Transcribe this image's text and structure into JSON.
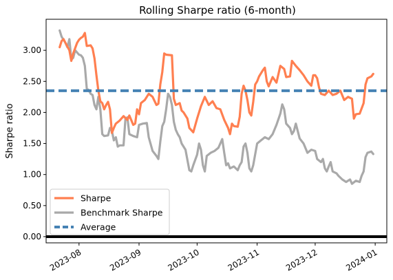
{
  "chart_data": {
    "type": "line",
    "title": "Rolling Sharpe ratio (6-month)",
    "xlabel": "",
    "ylabel": "Sharpe ratio",
    "ylim": [
      -0.1,
      3.5
    ],
    "y_ticks": [
      0.0,
      0.5,
      1.0,
      1.5,
      2.0,
      2.5,
      3.0
    ],
    "y_tick_labels": [
      "0.00",
      "0.50",
      "1.00",
      "1.50",
      "2.00",
      "2.50",
      "3.00"
    ],
    "xlim": [
      "2023-07-15",
      "2024-01-07"
    ],
    "x_ticks": [
      "2023-08-01",
      "2023-09-01",
      "2023-10-01",
      "2023-11-01",
      "2023-12-01",
      "2024-01-01"
    ],
    "x_tick_labels": [
      "2023-08",
      "2023-09",
      "2023-10",
      "2023-11",
      "2023-12",
      "2024-01"
    ],
    "grid": false,
    "legend_position": "lower-left",
    "colors": {
      "sharpe": "#ff7f50",
      "benchmark": "#a9a9a9",
      "average": "#4682b4",
      "zero_line": "#000000"
    },
    "series": [
      {
        "name": "Sharpe",
        "style": "solid",
        "points": [
          [
            "2023-07-22",
            3.05
          ],
          [
            "2023-07-23",
            3.15
          ],
          [
            "2023-07-24",
            3.18
          ],
          [
            "2023-07-25",
            3.12
          ],
          [
            "2023-07-27",
            3.0
          ],
          [
            "2023-07-28",
            2.83
          ],
          [
            "2023-07-29",
            2.95
          ],
          [
            "2023-07-31",
            3.12
          ],
          [
            "2023-08-01",
            3.17
          ],
          [
            "2023-08-02",
            3.2
          ],
          [
            "2023-08-03",
            3.22
          ],
          [
            "2023-08-04",
            3.28
          ],
          [
            "2023-08-05",
            3.07
          ],
          [
            "2023-08-07",
            3.08
          ],
          [
            "2023-08-08",
            3.03
          ],
          [
            "2023-08-09",
            2.87
          ],
          [
            "2023-08-10",
            2.6
          ],
          [
            "2023-08-11",
            2.35
          ],
          [
            "2023-08-12",
            2.18
          ],
          [
            "2023-08-13",
            2.15
          ],
          [
            "2023-08-14",
            2.05
          ],
          [
            "2023-08-15",
            2.12
          ],
          [
            "2023-08-16",
            2.17
          ],
          [
            "2023-08-17",
            2.05
          ],
          [
            "2023-08-18",
            1.67
          ],
          [
            "2023-08-19",
            1.75
          ],
          [
            "2023-08-20",
            1.82
          ],
          [
            "2023-08-22",
            1.87
          ],
          [
            "2023-08-24",
            1.94
          ],
          [
            "2023-08-26",
            1.88
          ],
          [
            "2023-08-27",
            1.95
          ],
          [
            "2023-08-29",
            1.8
          ],
          [
            "2023-08-30",
            1.82
          ],
          [
            "2023-08-31",
            2.05
          ],
          [
            "2023-09-01",
            1.97
          ],
          [
            "2023-09-02",
            2.15
          ],
          [
            "2023-09-04",
            2.2
          ],
          [
            "2023-09-06",
            2.3
          ],
          [
            "2023-09-08",
            2.25
          ],
          [
            "2023-09-10",
            2.12
          ],
          [
            "2023-09-11",
            2.14
          ],
          [
            "2023-09-12",
            2.45
          ],
          [
            "2023-09-13",
            2.65
          ],
          [
            "2023-09-14",
            2.95
          ],
          [
            "2023-09-15",
            2.93
          ],
          [
            "2023-09-18",
            2.92
          ],
          [
            "2023-09-19",
            2.22
          ],
          [
            "2023-09-20",
            2.12
          ],
          [
            "2023-09-22",
            2.15
          ],
          [
            "2023-09-23",
            2.03
          ],
          [
            "2023-09-24",
            2.0
          ],
          [
            "2023-09-26",
            1.9
          ],
          [
            "2023-09-27",
            1.75
          ],
          [
            "2023-09-29",
            1.68
          ],
          [
            "2023-10-01",
            1.9
          ],
          [
            "2023-10-03",
            2.1
          ],
          [
            "2023-10-05",
            2.25
          ],
          [
            "2023-10-07",
            2.12
          ],
          [
            "2023-10-09",
            2.18
          ],
          [
            "2023-10-11",
            2.07
          ],
          [
            "2023-10-13",
            2.05
          ],
          [
            "2023-10-15",
            1.88
          ],
          [
            "2023-10-17",
            1.75
          ],
          [
            "2023-10-18",
            1.65
          ],
          [
            "2023-10-19",
            1.82
          ],
          [
            "2023-10-20",
            1.78
          ],
          [
            "2023-10-22",
            1.77
          ],
          [
            "2023-10-23",
            1.93
          ],
          [
            "2023-10-24",
            2.3
          ],
          [
            "2023-10-25",
            2.43
          ],
          [
            "2023-10-26",
            2.35
          ],
          [
            "2023-10-27",
            2.2
          ],
          [
            "2023-10-28",
            2.0
          ],
          [
            "2023-10-29",
            1.95
          ],
          [
            "2023-10-30",
            2.17
          ],
          [
            "2023-10-31",
            2.45
          ],
          [
            "2023-11-01",
            2.5
          ],
          [
            "2023-11-02",
            2.58
          ],
          [
            "2023-11-04",
            2.68
          ],
          [
            "2023-11-05",
            2.72
          ],
          [
            "2023-11-06",
            2.5
          ],
          [
            "2023-11-07",
            2.42
          ],
          [
            "2023-11-09",
            2.57
          ],
          [
            "2023-11-11",
            2.48
          ],
          [
            "2023-11-13",
            2.75
          ],
          [
            "2023-11-15",
            2.7
          ],
          [
            "2023-11-16",
            2.57
          ],
          [
            "2023-11-18",
            2.58
          ],
          [
            "2023-11-19",
            2.83
          ],
          [
            "2023-11-21",
            2.75
          ],
          [
            "2023-11-23",
            2.68
          ],
          [
            "2023-11-25",
            2.6
          ],
          [
            "2023-11-27",
            2.5
          ],
          [
            "2023-11-29",
            2.43
          ],
          [
            "2023-11-30",
            2.6
          ],
          [
            "2023-12-01",
            2.6
          ],
          [
            "2023-12-02",
            2.55
          ],
          [
            "2023-12-03",
            2.4
          ],
          [
            "2023-12-04",
            2.3
          ],
          [
            "2023-12-06",
            2.28
          ],
          [
            "2023-12-08",
            2.35
          ],
          [
            "2023-12-10",
            2.28
          ],
          [
            "2023-12-12",
            2.3
          ],
          [
            "2023-12-14",
            2.35
          ],
          [
            "2023-12-16",
            2.2
          ],
          [
            "2023-12-18",
            2.25
          ],
          [
            "2023-12-20",
            2.22
          ],
          [
            "2023-12-21",
            1.9
          ],
          [
            "2023-12-22",
            1.97
          ],
          [
            "2023-12-24",
            1.98
          ],
          [
            "2023-12-26",
            2.15
          ],
          [
            "2023-12-27",
            2.45
          ],
          [
            "2023-12-28",
            2.55
          ],
          [
            "2023-12-30",
            2.58
          ],
          [
            "2023-12-31",
            2.62
          ]
        ]
      },
      {
        "name": "Benchmark Sharpe",
        "style": "solid",
        "points": [
          [
            "2023-07-22",
            3.32
          ],
          [
            "2023-07-23",
            3.22
          ],
          [
            "2023-07-24",
            3.17
          ],
          [
            "2023-07-25",
            3.12
          ],
          [
            "2023-07-26",
            3.05
          ],
          [
            "2023-07-27",
            3.18
          ],
          [
            "2023-07-28",
            2.85
          ],
          [
            "2023-07-29",
            2.88
          ],
          [
            "2023-07-30",
            3.0
          ],
          [
            "2023-08-01",
            2.93
          ],
          [
            "2023-08-02",
            2.92
          ],
          [
            "2023-08-03",
            2.88
          ],
          [
            "2023-08-04",
            2.75
          ],
          [
            "2023-08-05",
            2.38
          ],
          [
            "2023-08-06",
            2.36
          ],
          [
            "2023-08-07",
            2.3
          ],
          [
            "2023-08-08",
            2.28
          ],
          [
            "2023-08-09",
            2.12
          ],
          [
            "2023-08-10",
            2.05
          ],
          [
            "2023-08-11",
            2.25
          ],
          [
            "2023-08-12",
            2.05
          ],
          [
            "2023-08-13",
            1.65
          ],
          [
            "2023-08-14",
            1.62
          ],
          [
            "2023-08-16",
            1.63
          ],
          [
            "2023-08-17",
            1.75
          ],
          [
            "2023-08-18",
            1.7
          ],
          [
            "2023-08-19",
            1.55
          ],
          [
            "2023-08-20",
            1.6
          ],
          [
            "2023-08-21",
            1.45
          ],
          [
            "2023-08-22",
            1.47
          ],
          [
            "2023-08-24",
            1.47
          ],
          [
            "2023-08-25",
            1.9
          ],
          [
            "2023-08-26",
            1.92
          ],
          [
            "2023-08-27",
            1.65
          ],
          [
            "2023-08-29",
            1.62
          ],
          [
            "2023-08-31",
            1.6
          ],
          [
            "2023-09-01",
            1.8
          ],
          [
            "2023-09-03",
            1.82
          ],
          [
            "2023-09-05",
            1.83
          ],
          [
            "2023-09-06",
            1.6
          ],
          [
            "2023-09-08",
            1.38
          ],
          [
            "2023-09-10",
            1.3
          ],
          [
            "2023-09-11",
            1.25
          ],
          [
            "2023-09-12",
            1.53
          ],
          [
            "2023-09-13",
            1.78
          ],
          [
            "2023-09-14",
            1.85
          ],
          [
            "2023-09-15",
            2.05
          ],
          [
            "2023-09-16",
            2.3
          ],
          [
            "2023-09-17",
            2.25
          ],
          [
            "2023-09-18",
            2.12
          ],
          [
            "2023-09-19",
            1.85
          ],
          [
            "2023-09-20",
            1.72
          ],
          [
            "2023-09-21",
            1.65
          ],
          [
            "2023-09-22",
            1.6
          ],
          [
            "2023-09-23",
            1.5
          ],
          [
            "2023-09-24",
            1.45
          ],
          [
            "2023-09-25",
            1.4
          ],
          [
            "2023-09-27",
            1.07
          ],
          [
            "2023-09-28",
            1.05
          ],
          [
            "2023-09-29",
            1.15
          ],
          [
            "2023-10-01",
            1.32
          ],
          [
            "2023-10-02",
            1.5
          ],
          [
            "2023-10-03",
            1.4
          ],
          [
            "2023-10-04",
            1.15
          ],
          [
            "2023-10-05",
            1.05
          ],
          [
            "2023-10-06",
            1.3
          ],
          [
            "2023-10-08",
            1.35
          ],
          [
            "2023-10-10",
            1.38
          ],
          [
            "2023-10-12",
            1.43
          ],
          [
            "2023-10-14",
            1.57
          ],
          [
            "2023-10-15",
            1.35
          ],
          [
            "2023-10-16",
            1.15
          ],
          [
            "2023-10-17",
            1.18
          ],
          [
            "2023-10-18",
            1.1
          ],
          [
            "2023-10-20",
            1.13
          ],
          [
            "2023-10-22",
            1.07
          ],
          [
            "2023-10-23",
            1.15
          ],
          [
            "2023-10-24",
            1.2
          ],
          [
            "2023-10-25",
            1.45
          ],
          [
            "2023-10-26",
            1.5
          ],
          [
            "2023-10-27",
            1.35
          ],
          [
            "2023-10-28",
            1.1
          ],
          [
            "2023-10-29",
            1.05
          ],
          [
            "2023-10-30",
            1.15
          ],
          [
            "2023-11-01",
            1.5
          ],
          [
            "2023-11-03",
            1.55
          ],
          [
            "2023-11-05",
            1.6
          ],
          [
            "2023-11-07",
            1.57
          ],
          [
            "2023-11-09",
            1.65
          ],
          [
            "2023-11-11",
            1.8
          ],
          [
            "2023-11-13",
            1.98
          ],
          [
            "2023-11-14",
            2.13
          ],
          [
            "2023-11-15",
            2.05
          ],
          [
            "2023-11-16",
            1.82
          ],
          [
            "2023-11-18",
            1.75
          ],
          [
            "2023-11-19",
            1.65
          ],
          [
            "2023-11-20",
            1.7
          ],
          [
            "2023-11-21",
            1.82
          ],
          [
            "2023-11-23",
            1.58
          ],
          [
            "2023-11-25",
            1.5
          ],
          [
            "2023-11-27",
            1.35
          ],
          [
            "2023-11-29",
            1.4
          ],
          [
            "2023-12-01",
            1.38
          ],
          [
            "2023-12-02",
            1.25
          ],
          [
            "2023-12-04",
            1.2
          ],
          [
            "2023-12-05",
            1.25
          ],
          [
            "2023-12-06",
            1.1
          ],
          [
            "2023-12-07",
            1.05
          ],
          [
            "2023-12-08",
            1.13
          ],
          [
            "2023-12-09",
            1.2
          ],
          [
            "2023-12-10",
            1.05
          ],
          [
            "2023-12-12",
            1.02
          ],
          [
            "2023-12-13",
            0.98
          ],
          [
            "2023-12-15",
            0.92
          ],
          [
            "2023-12-17",
            0.88
          ],
          [
            "2023-12-19",
            0.92
          ],
          [
            "2023-12-20",
            0.85
          ],
          [
            "2023-12-22",
            0.9
          ],
          [
            "2023-12-24",
            0.88
          ],
          [
            "2023-12-25",
            0.98
          ],
          [
            "2023-12-26",
            1.05
          ],
          [
            "2023-12-27",
            1.28
          ],
          [
            "2023-12-28",
            1.35
          ],
          [
            "2023-12-30",
            1.37
          ],
          [
            "2023-12-31",
            1.33
          ]
        ]
      },
      {
        "name": "Average",
        "style": "dashed",
        "value": 2.35
      }
    ],
    "zero_line": 0.0
  }
}
